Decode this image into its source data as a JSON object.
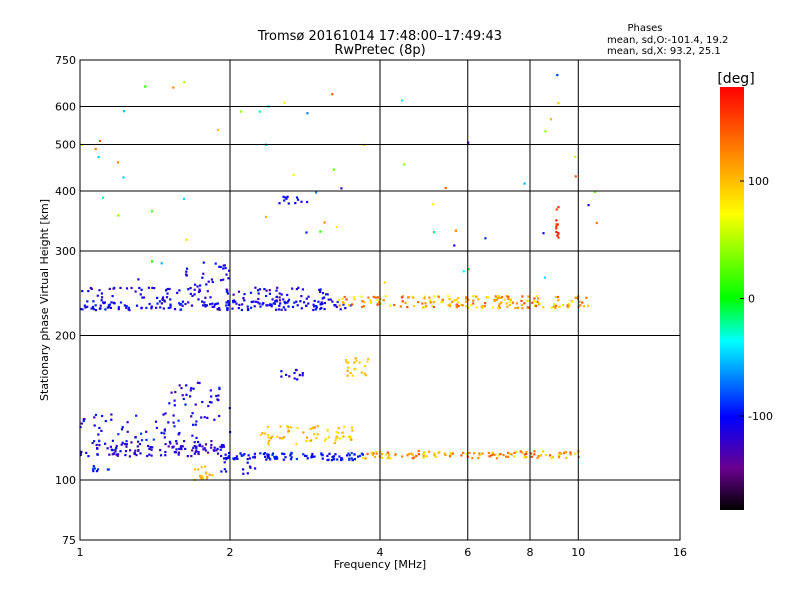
{
  "chart_data": {
    "type": "scatter",
    "title": "Tromsø 20161014 17:48:00–17:49:43",
    "subtitle": "RwPretec (8p)",
    "xlabel": "Frequency [MHz]",
    "ylabel": "Stationary phase Virtual Height [km]",
    "x_scale": "log",
    "y_scale": "log",
    "xlim": [
      1,
      16
    ],
    "ylim": [
      75,
      750
    ],
    "x_ticks": [
      "1",
      "2",
      "4",
      "6",
      "8",
      "10",
      "16"
    ],
    "y_ticks": [
      "75",
      "100",
      "200",
      "300",
      "400",
      "500",
      "600",
      "750"
    ],
    "grid": true,
    "phase_stats": {
      "heading": "Phases",
      "line1": "mean, sd,O:-101.4, 19.2",
      "line2": "mean, sd,X: 93.2, 25.1"
    },
    "colorbar": {
      "label": "[deg]",
      "range": [
        -180,
        180
      ],
      "ticks": [
        "100",
        "0",
        "-100"
      ],
      "tick_values": [
        100,
        0,
        -100
      ]
    },
    "clusters": [
      {
        "x": [
          1.0,
          1.95
        ],
        "y": [
          112,
          120
        ],
        "phase": [
          -135,
          -100
        ]
      },
      {
        "x": [
          1.95,
          3.7
        ],
        "y": [
          110,
          114
        ],
        "phase": [
          -110,
          -85
        ]
      },
      {
        "x": [
          3.7,
          10.3
        ],
        "y": [
          111,
          115
        ],
        "phase": [
          80,
          150
        ]
      },
      {
        "x": [
          2.3,
          3.6
        ],
        "y": [
          118,
          130
        ],
        "phase": [
          80,
          115
        ]
      },
      {
        "x": [
          1.0,
          1.6
        ],
        "y": [
          120,
          138
        ],
        "phase": [
          -125,
          -85
        ]
      },
      {
        "x": [
          1.5,
          2.0
        ],
        "y": [
          120,
          160
        ],
        "phase": [
          -130,
          -90
        ]
      },
      {
        "x": [
          1.7,
          1.85
        ],
        "y": [
          100,
          107
        ],
        "phase": [
          90,
          115
        ]
      },
      {
        "x": [
          1.05,
          1.15
        ],
        "y": [
          104,
          108
        ],
        "phase": [
          -105,
          -85
        ]
      },
      {
        "x": [
          1.9,
          2.3
        ],
        "y": [
          103,
          112
        ],
        "phase": [
          -115,
          -95
        ]
      },
      {
        "x": [
          2.5,
          2.8
        ],
        "y": [
          162,
          170
        ],
        "phase": [
          -125,
          -100
        ]
      },
      {
        "x": [
          3.4,
          3.8
        ],
        "y": [
          165,
          180
        ],
        "phase": [
          85,
          110
        ]
      },
      {
        "x": [
          1.0,
          3.5
        ],
        "y": [
          226,
          236
        ],
        "phase": [
          -120,
          -90
        ]
      },
      {
        "x": [
          1.0,
          3.2
        ],
        "y": [
          236,
          252
        ],
        "phase": [
          -130,
          -95
        ]
      },
      {
        "x": [
          1.6,
          2.0
        ],
        "y": [
          240,
          285
        ],
        "phase": [
          -120,
          -95
        ]
      },
      {
        "x": [
          3.3,
          10.5
        ],
        "y": [
          228,
          242
        ],
        "phase": [
          70,
          150
        ]
      },
      {
        "x": [
          2.5,
          2.9
        ],
        "y": [
          375,
          390
        ],
        "phase": [
          -115,
          -95
        ]
      },
      {
        "x": [
          9.0,
          9.2
        ],
        "y": [
          320,
          380
        ],
        "phase": [
          150,
          175
        ]
      },
      {
        "x": [
          1.0,
          12
        ],
        "y": [
          250,
          700
        ],
        "phase": [
          -140,
          150
        ]
      }
    ],
    "cluster_counts": [
      120,
      100,
      110,
      60,
      50,
      50,
      15,
      8,
      15,
      12,
      20,
      170,
      100,
      30,
      180,
      12,
      12,
      60
    ]
  }
}
